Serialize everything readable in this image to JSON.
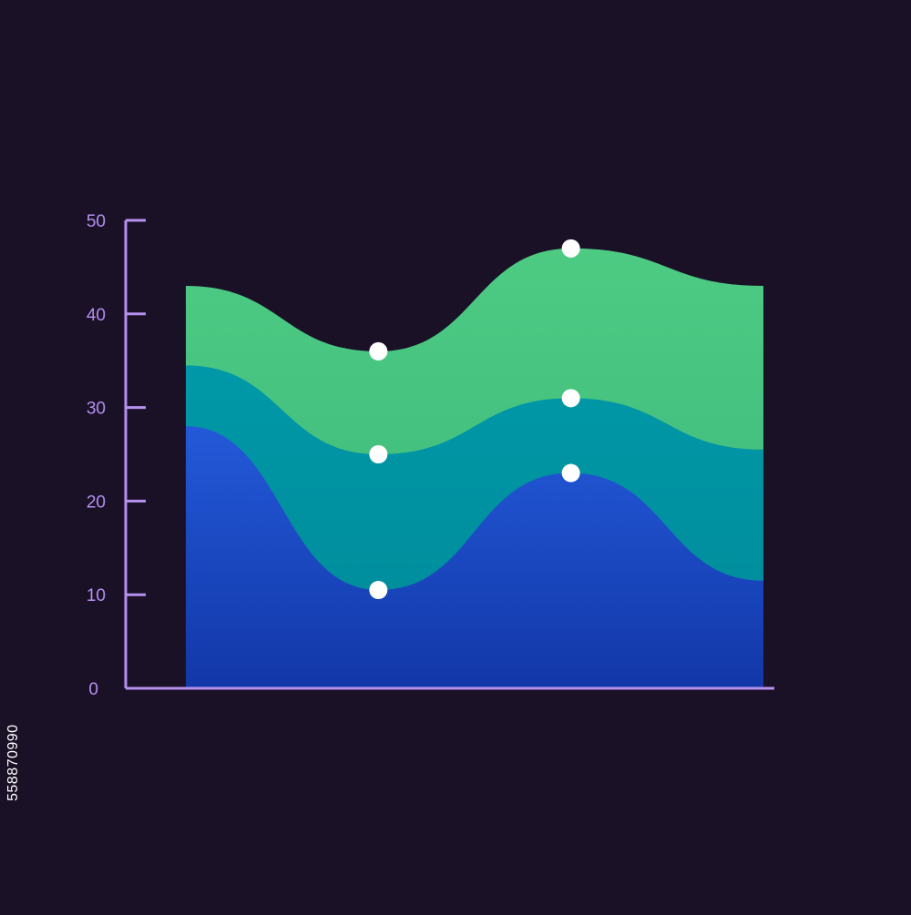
{
  "chart_data": {
    "type": "area",
    "stacked": true,
    "title": "",
    "xlabel": "",
    "ylabel": "",
    "ylim": [
      0,
      50
    ],
    "yticks": [
      0,
      10,
      20,
      30,
      40,
      50
    ],
    "x": [
      0,
      1,
      2,
      3
    ],
    "series": [
      {
        "values": [
          28,
          10.5,
          23,
          11.5
        ],
        "color_top": "#2359d8",
        "color_bottom": "#1237a8"
      },
      {
        "values": [
          34.5,
          25,
          31,
          25.5
        ],
        "color_top": "#0098a8",
        "color_bottom": "#008a98"
      },
      {
        "values": [
          43,
          36,
          47,
          43
        ],
        "color_top": "#4dcb83",
        "color_bottom": "#3ab57a"
      }
    ],
    "markers_at_x": [
      1,
      2
    ],
    "grid": false,
    "legend": "none",
    "colors": {
      "background": "#1a1127",
      "axis": "#b691f0",
      "marker": "#ffffff"
    }
  },
  "stock_id": "558870990"
}
